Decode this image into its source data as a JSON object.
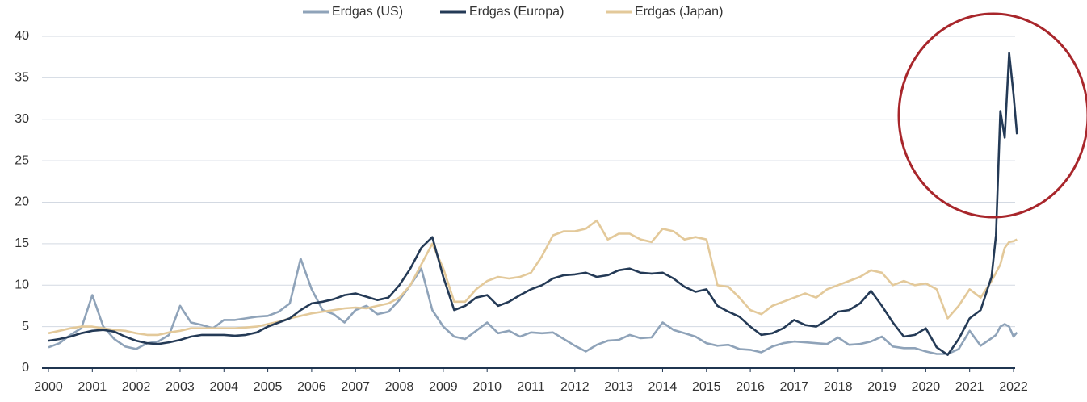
{
  "chart_data": {
    "type": "line",
    "x": [
      2000,
      2000.25,
      2000.5,
      2000.75,
      2001,
      2001.25,
      2001.5,
      2001.75,
      2002,
      2002.25,
      2002.5,
      2002.75,
      2003,
      2003.25,
      2003.5,
      2003.75,
      2004,
      2004.25,
      2004.5,
      2004.75,
      2005,
      2005.25,
      2005.5,
      2005.75,
      2006,
      2006.25,
      2006.5,
      2006.75,
      2007,
      2007.25,
      2007.5,
      2007.75,
      2008,
      2008.25,
      2008.5,
      2008.75,
      2009,
      2009.25,
      2009.5,
      2009.75,
      2010,
      2010.25,
      2010.5,
      2010.75,
      2011,
      2011.25,
      2011.5,
      2011.75,
      2012,
      2012.25,
      2012.5,
      2012.75,
      2013,
      2013.25,
      2013.5,
      2013.75,
      2014,
      2014.25,
      2014.5,
      2014.75,
      2015,
      2015.25,
      2015.5,
      2015.75,
      2016,
      2016.25,
      2016.5,
      2016.75,
      2017,
      2017.25,
      2017.5,
      2017.75,
      2018,
      2018.25,
      2018.5,
      2018.75,
      2019,
      2019.25,
      2019.5,
      2019.75,
      2020,
      2020.25,
      2020.5,
      2020.75,
      2021,
      2021.25,
      2021.5,
      2021.6,
      2021.7,
      2021.8,
      2021.9,
      2022,
      2022.08
    ],
    "series": [
      {
        "name": "Erdgas (US)",
        "color": "#8fa3b9",
        "values": [
          2.5,
          3.0,
          4.0,
          4.8,
          8.8,
          5.0,
          3.5,
          2.6,
          2.3,
          3.0,
          3.2,
          4.0,
          7.5,
          5.5,
          5.2,
          4.8,
          5.8,
          5.8,
          6.0,
          6.2,
          6.3,
          6.8,
          7.8,
          13.2,
          9.5,
          7.0,
          6.5,
          5.5,
          7.0,
          7.5,
          6.5,
          6.8,
          8.2,
          10.0,
          12.0,
          7.0,
          5.0,
          3.8,
          3.5,
          4.5,
          5.5,
          4.2,
          4.5,
          3.8,
          4.3,
          4.2,
          4.3,
          3.5,
          2.7,
          2.0,
          2.8,
          3.3,
          3.4,
          4.0,
          3.6,
          3.7,
          5.5,
          4.6,
          4.2,
          3.8,
          3.0,
          2.7,
          2.8,
          2.3,
          2.2,
          1.9,
          2.6,
          3.0,
          3.2,
          3.1,
          3.0,
          2.9,
          3.7,
          2.8,
          2.9,
          3.2,
          3.8,
          2.6,
          2.4,
          2.4,
          2.0,
          1.7,
          1.7,
          2.3,
          4.5,
          2.7,
          3.6,
          4.0,
          5.0,
          5.3,
          5.0,
          3.8,
          4.3
        ]
      },
      {
        "name": "Erdgas (Europa)",
        "color": "#243a56",
        "values": [
          3.3,
          3.5,
          3.8,
          4.2,
          4.5,
          4.6,
          4.4,
          3.8,
          3.3,
          3.0,
          2.9,
          3.1,
          3.4,
          3.8,
          4.0,
          4.0,
          4.0,
          3.9,
          4.0,
          4.3,
          5.0,
          5.5,
          6.0,
          7.0,
          7.8,
          8.0,
          8.3,
          8.8,
          9.0,
          8.6,
          8.2,
          8.5,
          10.0,
          12.0,
          14.5,
          15.8,
          11.0,
          7.0,
          7.5,
          8.5,
          8.8,
          7.5,
          8.0,
          8.8,
          9.5,
          10.0,
          10.8,
          11.2,
          11.3,
          11.5,
          11.0,
          11.2,
          11.8,
          12.0,
          11.5,
          11.4,
          11.5,
          10.8,
          9.8,
          9.2,
          9.5,
          7.5,
          6.8,
          6.2,
          5.0,
          4.0,
          4.2,
          4.8,
          5.8,
          5.2,
          5.0,
          5.8,
          6.8,
          7.0,
          7.8,
          9.3,
          7.5,
          5.5,
          3.8,
          4.0,
          4.8,
          2.5,
          1.6,
          3.5,
          6.0,
          7.0,
          11.0,
          16.0,
          31.0,
          27.8,
          38.0,
          33.0,
          28.2
        ]
      },
      {
        "name": "Erdgas (Japan)",
        "color": "#e3c99a",
        "values": [
          4.2,
          4.5,
          4.8,
          5.0,
          5.0,
          4.8,
          4.6,
          4.5,
          4.2,
          4.0,
          4.0,
          4.3,
          4.5,
          4.8,
          4.8,
          4.8,
          4.8,
          4.8,
          4.9,
          5.0,
          5.3,
          5.6,
          6.0,
          6.3,
          6.6,
          6.8,
          7.0,
          7.2,
          7.3,
          7.2,
          7.5,
          7.8,
          8.5,
          10.0,
          12.5,
          15.0,
          12.0,
          8.0,
          8.0,
          9.5,
          10.5,
          11.0,
          10.8,
          11.0,
          11.5,
          13.5,
          16.0,
          16.5,
          16.5,
          16.8,
          17.8,
          15.5,
          16.2,
          16.2,
          15.5,
          15.2,
          16.8,
          16.5,
          15.5,
          15.8,
          15.5,
          10.0,
          9.8,
          8.5,
          7.0,
          6.5,
          7.5,
          8.0,
          8.5,
          9.0,
          8.5,
          9.5,
          10.0,
          10.5,
          11.0,
          11.8,
          11.5,
          10.0,
          10.5,
          10.0,
          10.2,
          9.5,
          6.0,
          7.5,
          9.5,
          8.5,
          10.5,
          11.5,
          12.5,
          14.5,
          15.2,
          15.3,
          15.5
        ]
      }
    ],
    "xlim": [
      2000,
      2022
    ],
    "xticks": [
      2000,
      2001,
      2002,
      2003,
      2004,
      2005,
      2006,
      2007,
      2008,
      2009,
      2010,
      2011,
      2012,
      2013,
      2014,
      2015,
      2016,
      2017,
      2018,
      2019,
      2020,
      2021,
      2022
    ],
    "ylim": [
      0,
      40
    ],
    "yticks": [
      0,
      5,
      10,
      15,
      20,
      25,
      30,
      35,
      40
    ],
    "grid": true,
    "legend": "top"
  }
}
